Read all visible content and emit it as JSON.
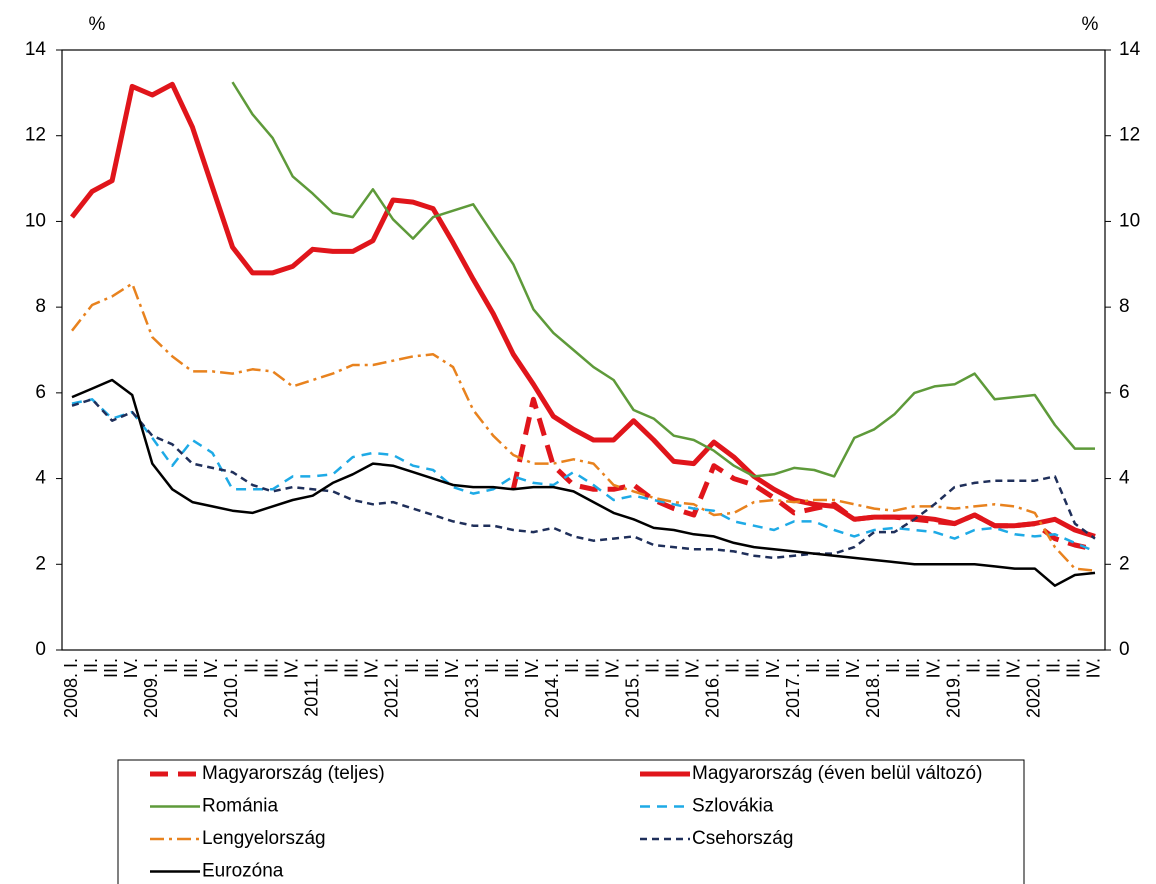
{
  "chart_data": {
    "type": "line",
    "y_label": "%",
    "y2_label": "%",
    "categories": [
      "2008. I.",
      "II.",
      "III.",
      "IV.",
      "2009. I.",
      "II.",
      "III.",
      "IV.",
      "2010. I.",
      "II.",
      "III.",
      "IV.",
      "2011. I.",
      "II.",
      "III.",
      "IV.",
      "2012. I.",
      "II.",
      "III.",
      "IV.",
      "2013. I.",
      "II.",
      "III.",
      "IV.",
      "2014. I.",
      "II.",
      "III.",
      "IV.",
      "2015. I.",
      "II.",
      "III.",
      "IV.",
      "2016. I.",
      "II.",
      "III.",
      "IV.",
      "2017. I.",
      "II.",
      "III.",
      "IV.",
      "2018. I.",
      "II.",
      "III.",
      "IV.",
      "2019. I.",
      "II.",
      "III.",
      "IV.",
      "2020. I.",
      "II.",
      "III.",
      "IV."
    ],
    "ylim": [
      0,
      14
    ],
    "yticks": [
      0,
      2,
      4,
      6,
      8,
      10,
      12,
      14
    ],
    "y2lim": [
      0,
      14
    ],
    "y2ticks": [
      0,
      2,
      4,
      6,
      8,
      10,
      12,
      14
    ],
    "series": [
      {
        "name": "Magyarország (teljes)",
        "color": "#e0151b",
        "style": "dashed-thick",
        "values": [
          null,
          null,
          null,
          null,
          null,
          null,
          null,
          null,
          null,
          null,
          null,
          null,
          null,
          null,
          null,
          null,
          null,
          null,
          null,
          null,
          null,
          null,
          3.75,
          5.85,
          4.3,
          3.85,
          3.75,
          3.75,
          3.85,
          3.5,
          3.3,
          3.15,
          4.3,
          4.0,
          3.85,
          3.55,
          3.2,
          3.3,
          3.4,
          3.05,
          3.1,
          3.1,
          3.05,
          3.0,
          2.95,
          3.15,
          2.9,
          2.9,
          2.95,
          2.6,
          2.45,
          2.35
        ]
      },
      {
        "name": "Magyarország (éven belül változó)",
        "color": "#e0151b",
        "style": "solid-thick",
        "values": [
          10.1,
          10.7,
          10.95,
          13.15,
          12.95,
          13.2,
          12.2,
          10.8,
          9.4,
          8.8,
          8.8,
          8.95,
          9.35,
          9.3,
          9.3,
          9.55,
          10.5,
          10.45,
          10.3,
          9.5,
          8.65,
          7.85,
          6.9,
          6.2,
          5.45,
          5.15,
          4.9,
          4.9,
          5.35,
          4.9,
          4.4,
          4.35,
          4.85,
          4.5,
          4.05,
          3.75,
          3.5,
          3.4,
          3.35,
          3.05,
          3.1,
          3.1,
          3.1,
          3.05,
          2.95,
          3.15,
          2.9,
          2.9,
          2.95,
          3.05,
          2.8,
          2.65
        ]
      },
      {
        "name": "Románia",
        "color": "#5e9a3a",
        "style": "solid",
        "values": [
          null,
          null,
          null,
          null,
          null,
          null,
          null,
          null,
          13.25,
          12.5,
          11.95,
          11.05,
          10.65,
          10.2,
          10.1,
          10.75,
          10.05,
          9.6,
          10.1,
          10.25,
          10.4,
          9.7,
          9.0,
          7.95,
          7.4,
          7.0,
          6.6,
          6.3,
          5.6,
          5.4,
          5.0,
          4.9,
          4.65,
          4.3,
          4.05,
          4.1,
          4.25,
          4.2,
          4.05,
          4.95,
          5.15,
          5.5,
          6.0,
          6.15,
          6.2,
          6.45,
          5.85,
          5.9,
          5.95,
          5.25,
          4.7,
          4.7
        ]
      },
      {
        "name": "Szlovákia",
        "color": "#1eaae6",
        "style": "dashed",
        "values": [
          5.75,
          5.85,
          5.4,
          5.55,
          4.95,
          4.3,
          4.9,
          4.6,
          3.75,
          3.75,
          3.75,
          4.05,
          4.05,
          4.1,
          4.5,
          4.6,
          4.55,
          4.3,
          4.2,
          3.8,
          3.65,
          3.75,
          4.05,
          3.9,
          3.85,
          4.15,
          3.85,
          3.5,
          3.6,
          3.5,
          3.4,
          3.3,
          3.25,
          3.0,
          2.9,
          2.8,
          3.0,
          3.0,
          2.8,
          2.65,
          2.8,
          2.85,
          2.8,
          2.75,
          2.6,
          2.8,
          2.85,
          2.7,
          2.65,
          2.7,
          2.5,
          2.3
        ]
      },
      {
        "name": "Lengyelország",
        "color": "#e8821e",
        "style": "dashdot",
        "values": [
          7.45,
          8.05,
          8.25,
          8.55,
          7.3,
          6.85,
          6.5,
          6.5,
          6.45,
          6.55,
          6.5,
          6.15,
          6.3,
          6.45,
          6.65,
          6.65,
          6.75,
          6.85,
          6.9,
          6.6,
          5.6,
          5.0,
          4.55,
          4.35,
          4.35,
          4.45,
          4.35,
          3.85,
          3.7,
          3.55,
          3.45,
          3.4,
          3.15,
          3.2,
          3.45,
          3.5,
          3.45,
          3.5,
          3.5,
          3.4,
          3.3,
          3.25,
          3.35,
          3.35,
          3.3,
          3.35,
          3.4,
          3.35,
          3.2,
          2.4,
          1.9,
          1.85
        ]
      },
      {
        "name": "Csehország",
        "color": "#1f2f5a",
        "style": "dashed-dark",
        "values": [
          5.7,
          5.85,
          5.35,
          5.55,
          5.0,
          4.8,
          4.35,
          4.25,
          4.15,
          3.85,
          3.7,
          3.8,
          3.75,
          3.7,
          3.5,
          3.4,
          3.45,
          3.3,
          3.15,
          3.0,
          2.9,
          2.9,
          2.8,
          2.75,
          2.85,
          2.65,
          2.55,
          2.6,
          2.65,
          2.45,
          2.4,
          2.35,
          2.35,
          2.3,
          2.2,
          2.15,
          2.2,
          2.25,
          2.25,
          2.4,
          2.75,
          2.75,
          3.05,
          3.4,
          3.8,
          3.9,
          3.95,
          3.95,
          3.95,
          4.05,
          2.95,
          2.6
        ]
      },
      {
        "name": "Eurozóna",
        "color": "#000000",
        "style": "solid",
        "values": [
          5.9,
          6.1,
          6.3,
          5.95,
          4.35,
          3.75,
          3.45,
          3.35,
          3.25,
          3.2,
          3.35,
          3.5,
          3.6,
          3.9,
          4.1,
          4.35,
          4.3,
          4.15,
          4.0,
          3.85,
          3.8,
          3.8,
          3.75,
          3.8,
          3.8,
          3.7,
          3.45,
          3.2,
          3.05,
          2.85,
          2.8,
          2.7,
          2.65,
          2.5,
          2.4,
          2.35,
          2.3,
          2.25,
          2.2,
          2.15,
          2.1,
          2.05,
          2.0,
          2.0,
          2.0,
          2.0,
          1.95,
          1.9,
          1.9,
          1.5,
          1.75,
          1.8
        ]
      }
    ]
  }
}
